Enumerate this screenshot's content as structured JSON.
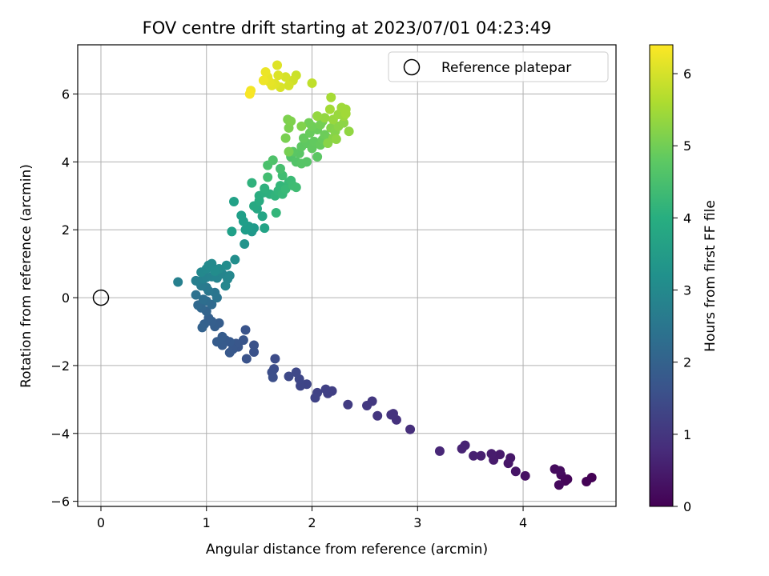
{
  "chart_data": {
    "type": "scatter",
    "title": "FOV centre drift starting at 2023/07/01 04:23:49",
    "xlabel": "Angular distance from reference (arcmin)",
    "ylabel": "Rotation from reference (arcmin)",
    "xlim": [
      -0.22,
      4.88
    ],
    "ylim": [
      -6.15,
      7.45
    ],
    "xticks": [
      0,
      1,
      2,
      3,
      4
    ],
    "yticks": [
      -6,
      -4,
      -2,
      0,
      2,
      4,
      6
    ],
    "xtick_labels": [
      "0",
      "1",
      "2",
      "3",
      "4"
    ],
    "ytick_labels": [
      "−6",
      "−4",
      "−2",
      "0",
      "2",
      "4",
      "6"
    ],
    "grid": true,
    "legend": {
      "position": "upper right",
      "label": "Reference platepar",
      "marker": "open circle"
    },
    "reference_point": {
      "x": 0,
      "y": 0
    },
    "colorbar": {
      "label": "Hours from first FF file",
      "min": 0,
      "max": 6.4,
      "ticks": [
        0,
        1,
        2,
        3,
        4,
        5,
        6
      ],
      "tick_labels": [
        "0",
        "1",
        "2",
        "3",
        "4",
        "5",
        "6"
      ],
      "colormap": "viridis"
    },
    "points": [
      {
        "x": 4.65,
        "y": -5.3,
        "t": 0.0
      },
      {
        "x": 4.6,
        "y": -5.42,
        "t": 0.03
      },
      {
        "x": 4.42,
        "y": -5.35,
        "t": 0.08
      },
      {
        "x": 4.4,
        "y": -5.4,
        "t": 0.1
      },
      {
        "x": 4.36,
        "y": -5.22,
        "t": 0.13
      },
      {
        "x": 4.34,
        "y": -5.52,
        "t": 0.15
      },
      {
        "x": 4.3,
        "y": -5.05,
        "t": 0.18
      },
      {
        "x": 4.35,
        "y": -5.1,
        "t": 0.2
      },
      {
        "x": 4.02,
        "y": -5.25,
        "t": 0.3
      },
      {
        "x": 3.93,
        "y": -5.12,
        "t": 0.35
      },
      {
        "x": 3.86,
        "y": -4.88,
        "t": 0.38
      },
      {
        "x": 3.88,
        "y": -4.72,
        "t": 0.4
      },
      {
        "x": 3.78,
        "y": -4.62,
        "t": 0.45
      },
      {
        "x": 3.72,
        "y": -4.78,
        "t": 0.48
      },
      {
        "x": 3.7,
        "y": -4.6,
        "t": 0.5
      },
      {
        "x": 3.6,
        "y": -4.66,
        "t": 0.55
      },
      {
        "x": 3.53,
        "y": -4.66,
        "t": 0.58
      },
      {
        "x": 3.45,
        "y": -4.35,
        "t": 0.62
      },
      {
        "x": 3.42,
        "y": -4.45,
        "t": 0.64
      },
      {
        "x": 3.21,
        "y": -4.52,
        "t": 0.7
      },
      {
        "x": 2.93,
        "y": -3.88,
        "t": 0.85
      },
      {
        "x": 2.8,
        "y": -3.6,
        "t": 0.9
      },
      {
        "x": 2.77,
        "y": -3.42,
        "t": 0.93
      },
      {
        "x": 2.75,
        "y": -3.45,
        "t": 0.95
      },
      {
        "x": 2.62,
        "y": -3.48,
        "t": 1.0
      },
      {
        "x": 2.57,
        "y": -3.05,
        "t": 1.05
      },
      {
        "x": 2.52,
        "y": -3.18,
        "t": 1.07
      },
      {
        "x": 2.34,
        "y": -3.15,
        "t": 1.12
      },
      {
        "x": 2.19,
        "y": -2.75,
        "t": 1.2
      },
      {
        "x": 2.15,
        "y": -2.82,
        "t": 1.22
      },
      {
        "x": 2.13,
        "y": -2.7,
        "t": 1.24
      },
      {
        "x": 2.05,
        "y": -2.8,
        "t": 1.26
      },
      {
        "x": 2.03,
        "y": -2.95,
        "t": 1.28
      },
      {
        "x": 1.95,
        "y": -2.55,
        "t": 1.32
      },
      {
        "x": 1.89,
        "y": -2.6,
        "t": 1.34
      },
      {
        "x": 1.88,
        "y": -2.4,
        "t": 1.36
      },
      {
        "x": 1.85,
        "y": -2.2,
        "t": 1.38
      },
      {
        "x": 1.78,
        "y": -2.32,
        "t": 1.4
      },
      {
        "x": 1.65,
        "y": -1.8,
        "t": 1.48
      },
      {
        "x": 1.64,
        "y": -2.1,
        "t": 1.5
      },
      {
        "x": 1.62,
        "y": -2.2,
        "t": 1.52
      },
      {
        "x": 1.63,
        "y": -2.35,
        "t": 1.54
      },
      {
        "x": 1.45,
        "y": -1.4,
        "t": 1.6
      },
      {
        "x": 1.45,
        "y": -1.6,
        "t": 1.62
      },
      {
        "x": 1.38,
        "y": -1.8,
        "t": 1.64
      },
      {
        "x": 1.37,
        "y": -0.95,
        "t": 1.66
      },
      {
        "x": 1.35,
        "y": -1.25,
        "t": 1.68
      },
      {
        "x": 1.3,
        "y": -1.45,
        "t": 1.7
      },
      {
        "x": 1.28,
        "y": -1.35,
        "t": 1.72
      },
      {
        "x": 1.25,
        "y": -1.52,
        "t": 1.74
      },
      {
        "x": 1.22,
        "y": -1.62,
        "t": 1.76
      },
      {
        "x": 1.22,
        "y": -1.3,
        "t": 1.78
      },
      {
        "x": 1.18,
        "y": -1.25,
        "t": 1.8
      },
      {
        "x": 1.15,
        "y": -1.4,
        "t": 1.82
      },
      {
        "x": 1.15,
        "y": -1.15,
        "t": 1.84
      },
      {
        "x": 1.1,
        "y": -1.3,
        "t": 1.86
      },
      {
        "x": 1.12,
        "y": -0.75,
        "t": 1.88
      },
      {
        "x": 1.08,
        "y": -0.85,
        "t": 1.9
      },
      {
        "x": 1.05,
        "y": -0.7,
        "t": 1.92
      },
      {
        "x": 1.02,
        "y": -0.6,
        "t": 1.94
      },
      {
        "x": 0.98,
        "y": -0.78,
        "t": 1.96
      },
      {
        "x": 0.96,
        "y": -0.88,
        "t": 1.98
      },
      {
        "x": 1.0,
        "y": -0.4,
        "t": 2.05
      },
      {
        "x": 0.95,
        "y": -0.3,
        "t": 2.1
      },
      {
        "x": 0.92,
        "y": -0.22,
        "t": 2.15
      },
      {
        "x": 1.05,
        "y": -0.2,
        "t": 2.2
      },
      {
        "x": 1.0,
        "y": -0.1,
        "t": 2.25
      },
      {
        "x": 0.97,
        "y": -0.05,
        "t": 2.3
      },
      {
        "x": 0.9,
        "y": 0.08,
        "t": 2.38
      },
      {
        "x": 1.1,
        "y": 0.0,
        "t": 2.45
      },
      {
        "x": 1.08,
        "y": 0.15,
        "t": 2.5
      },
      {
        "x": 1.02,
        "y": 0.2,
        "t": 2.55
      },
      {
        "x": 1.0,
        "y": 0.3,
        "t": 2.6
      },
      {
        "x": 0.95,
        "y": 0.35,
        "t": 2.65
      },
      {
        "x": 0.92,
        "y": 0.48,
        "t": 2.7
      },
      {
        "x": 0.9,
        "y": 0.5,
        "t": 2.75
      },
      {
        "x": 0.73,
        "y": 0.46,
        "t": 2.8
      },
      {
        "x": 0.97,
        "y": 0.55,
        "t": 2.82
      },
      {
        "x": 1.0,
        "y": 0.6,
        "t": 2.85
      },
      {
        "x": 1.05,
        "y": 0.62,
        "t": 2.88
      },
      {
        "x": 1.1,
        "y": 0.58,
        "t": 2.9
      },
      {
        "x": 1.15,
        "y": 0.7,
        "t": 2.92
      },
      {
        "x": 1.2,
        "y": 0.55,
        "t": 2.94
      },
      {
        "x": 1.22,
        "y": 0.65,
        "t": 2.96
      },
      {
        "x": 1.18,
        "y": 0.35,
        "t": 2.98
      },
      {
        "x": 0.95,
        "y": 0.75,
        "t": 3.0
      },
      {
        "x": 1.0,
        "y": 0.85,
        "t": 3.02
      },
      {
        "x": 1.02,
        "y": 0.95,
        "t": 3.04
      },
      {
        "x": 1.05,
        "y": 1.0,
        "t": 3.06
      },
      {
        "x": 1.12,
        "y": 0.85,
        "t": 3.08
      },
      {
        "x": 1.08,
        "y": 0.78,
        "t": 3.1
      },
      {
        "x": 1.19,
        "y": 0.95,
        "t": 3.12
      },
      {
        "x": 1.27,
        "y": 1.12,
        "t": 3.15
      },
      {
        "x": 1.36,
        "y": 1.58,
        "t": 3.3
      },
      {
        "x": 1.43,
        "y": 1.95,
        "t": 3.4
      },
      {
        "x": 1.45,
        "y": 2.05,
        "t": 3.45
      },
      {
        "x": 1.4,
        "y": 2.1,
        "t": 3.5
      },
      {
        "x": 1.37,
        "y": 2.0,
        "t": 3.52
      },
      {
        "x": 1.35,
        "y": 2.25,
        "t": 3.55
      },
      {
        "x": 1.33,
        "y": 2.42,
        "t": 3.58
      },
      {
        "x": 1.24,
        "y": 1.95,
        "t": 3.6
      },
      {
        "x": 1.26,
        "y": 2.83,
        "t": 3.65
      },
      {
        "x": 1.55,
        "y": 2.05,
        "t": 3.7
      },
      {
        "x": 1.53,
        "y": 2.4,
        "t": 3.75
      },
      {
        "x": 1.48,
        "y": 2.62,
        "t": 3.8
      },
      {
        "x": 1.45,
        "y": 2.7,
        "t": 3.85
      },
      {
        "x": 1.5,
        "y": 2.85,
        "t": 3.9
      },
      {
        "x": 1.5,
        "y": 3.0,
        "t": 3.95
      },
      {
        "x": 1.55,
        "y": 3.1,
        "t": 4.0
      },
      {
        "x": 1.6,
        "y": 3.05,
        "t": 4.05
      },
      {
        "x": 1.55,
        "y": 3.22,
        "t": 4.08
      },
      {
        "x": 1.43,
        "y": 3.38,
        "t": 4.1
      },
      {
        "x": 1.65,
        "y": 3.0,
        "t": 4.15
      },
      {
        "x": 1.68,
        "y": 3.15,
        "t": 4.2
      },
      {
        "x": 1.66,
        "y": 2.5,
        "t": 4.22
      },
      {
        "x": 1.7,
        "y": 3.3,
        "t": 4.25
      },
      {
        "x": 1.72,
        "y": 3.05,
        "t": 4.28
      },
      {
        "x": 1.78,
        "y": 3.4,
        "t": 4.3
      },
      {
        "x": 1.75,
        "y": 3.2,
        "t": 4.32
      },
      {
        "x": 1.8,
        "y": 3.45,
        "t": 4.35
      },
      {
        "x": 1.82,
        "y": 3.3,
        "t": 4.38
      },
      {
        "x": 1.85,
        "y": 3.25,
        "t": 4.4
      },
      {
        "x": 1.72,
        "y": 3.6,
        "t": 4.42
      },
      {
        "x": 1.58,
        "y": 3.55,
        "t": 4.45
      },
      {
        "x": 1.7,
        "y": 3.8,
        "t": 4.5
      },
      {
        "x": 1.58,
        "y": 3.9,
        "t": 4.55
      },
      {
        "x": 1.63,
        "y": 4.05,
        "t": 4.6
      },
      {
        "x": 1.8,
        "y": 4.15,
        "t": 4.62
      },
      {
        "x": 1.85,
        "y": 4.0,
        "t": 4.65
      },
      {
        "x": 1.9,
        "y": 3.95,
        "t": 4.68
      },
      {
        "x": 1.95,
        "y": 4.0,
        "t": 4.7
      },
      {
        "x": 1.88,
        "y": 4.25,
        "t": 4.72
      },
      {
        "x": 1.82,
        "y": 4.3,
        "t": 4.74
      },
      {
        "x": 2.05,
        "y": 4.15,
        "t": 4.76
      },
      {
        "x": 1.9,
        "y": 4.45,
        "t": 4.78
      },
      {
        "x": 1.95,
        "y": 4.55,
        "t": 4.8
      },
      {
        "x": 2.0,
        "y": 4.4,
        "t": 4.82
      },
      {
        "x": 2.02,
        "y": 4.6,
        "t": 4.84
      },
      {
        "x": 1.92,
        "y": 4.7,
        "t": 4.86
      },
      {
        "x": 2.08,
        "y": 4.5,
        "t": 4.88
      },
      {
        "x": 2.1,
        "y": 4.65,
        "t": 4.9
      },
      {
        "x": 1.98,
        "y": 4.85,
        "t": 4.92
      },
      {
        "x": 2.05,
        "y": 4.95,
        "t": 4.94
      },
      {
        "x": 2.12,
        "y": 4.8,
        "t": 4.96
      },
      {
        "x": 2.15,
        "y": 4.7,
        "t": 4.98
      },
      {
        "x": 2.0,
        "y": 5.05,
        "t": 5.0
      },
      {
        "x": 1.97,
        "y": 5.15,
        "t": 5.02
      },
      {
        "x": 2.08,
        "y": 5.1,
        "t": 5.04
      },
      {
        "x": 2.1,
        "y": 5.2,
        "t": 5.06
      },
      {
        "x": 1.78,
        "y": 4.3,
        "t": 5.08
      },
      {
        "x": 1.75,
        "y": 4.7,
        "t": 5.1
      },
      {
        "x": 1.78,
        "y": 5.0,
        "t": 5.12
      },
      {
        "x": 1.77,
        "y": 5.25,
        "t": 5.14
      },
      {
        "x": 1.8,
        "y": 5.2,
        "t": 5.16
      },
      {
        "x": 1.9,
        "y": 5.05,
        "t": 5.18
      },
      {
        "x": 2.18,
        "y": 5.0,
        "t": 5.2
      },
      {
        "x": 2.22,
        "y": 4.9,
        "t": 5.22
      },
      {
        "x": 2.2,
        "y": 4.7,
        "t": 5.24
      },
      {
        "x": 2.15,
        "y": 4.55,
        "t": 5.26
      },
      {
        "x": 2.25,
        "y": 5.05,
        "t": 5.28
      },
      {
        "x": 2.3,
        "y": 5.15,
        "t": 5.3
      },
      {
        "x": 2.23,
        "y": 4.67,
        "t": 5.32
      },
      {
        "x": 2.35,
        "y": 4.9,
        "t": 5.34
      },
      {
        "x": 2.12,
        "y": 5.3,
        "t": 5.36
      },
      {
        "x": 2.05,
        "y": 5.35,
        "t": 5.38
      },
      {
        "x": 2.2,
        "y": 5.25,
        "t": 5.4
      },
      {
        "x": 2.25,
        "y": 5.4,
        "t": 5.42
      },
      {
        "x": 2.3,
        "y": 5.35,
        "t": 5.44
      },
      {
        "x": 2.32,
        "y": 5.55,
        "t": 5.46
      },
      {
        "x": 2.28,
        "y": 5.6,
        "t": 5.48
      },
      {
        "x": 2.32,
        "y": 5.42,
        "t": 5.5
      },
      {
        "x": 2.17,
        "y": 5.55,
        "t": 5.52
      },
      {
        "x": 2.18,
        "y": 5.9,
        "t": 5.55
      },
      {
        "x": 2.0,
        "y": 6.32,
        "t": 5.8
      },
      {
        "x": 1.85,
        "y": 6.55,
        "t": 5.9
      },
      {
        "x": 1.82,
        "y": 6.4,
        "t": 5.95
      },
      {
        "x": 1.78,
        "y": 6.25,
        "t": 6.0
      },
      {
        "x": 1.75,
        "y": 6.5,
        "t": 6.02
      },
      {
        "x": 1.7,
        "y": 6.2,
        "t": 6.05
      },
      {
        "x": 1.68,
        "y": 6.55,
        "t": 6.08
      },
      {
        "x": 1.67,
        "y": 6.85,
        "t": 6.1
      },
      {
        "x": 1.65,
        "y": 6.3,
        "t": 6.12
      },
      {
        "x": 1.62,
        "y": 6.25,
        "t": 6.15
      },
      {
        "x": 1.6,
        "y": 6.35,
        "t": 6.18
      },
      {
        "x": 1.58,
        "y": 6.5,
        "t": 6.2
      },
      {
        "x": 1.56,
        "y": 6.65,
        "t": 6.22
      },
      {
        "x": 1.54,
        "y": 6.4,
        "t": 6.25
      },
      {
        "x": 1.42,
        "y": 6.1,
        "t": 6.3
      },
      {
        "x": 1.41,
        "y": 6.0,
        "t": 6.35
      }
    ]
  }
}
